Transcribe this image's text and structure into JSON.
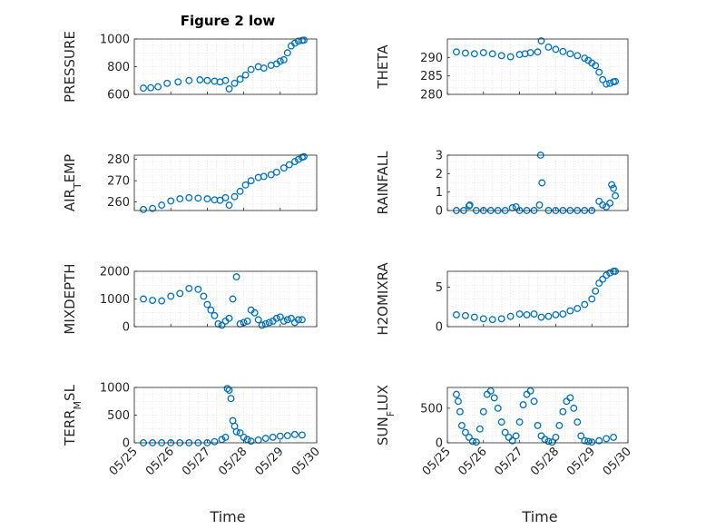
{
  "chart_data": [
    {
      "type": "scatter",
      "title": "Figure 2 low",
      "ylabel": "PRESSURE",
      "ylim": [
        600,
        1000
      ],
      "yticks": [
        600,
        800,
        1000
      ],
      "xlim": [
        0,
        5
      ],
      "x": [
        0.25,
        0.45,
        0.65,
        0.9,
        1.2,
        1.5,
        1.8,
        2.0,
        2.2,
        2.35,
        2.5,
        2.6,
        2.75,
        2.9,
        3.05,
        3.2,
        3.4,
        3.55,
        3.75,
        3.9,
        4.0,
        4.1,
        4.2,
        4.3,
        4.4,
        4.5,
        4.6,
        4.65
      ],
      "values": [
        645,
        648,
        655,
        680,
        690,
        700,
        705,
        700,
        695,
        690,
        700,
        640,
        680,
        710,
        740,
        780,
        800,
        790,
        810,
        820,
        840,
        850,
        900,
        950,
        970,
        985,
        990,
        992
      ]
    },
    {
      "type": "scatter",
      "title": "",
      "ylabel": "THETA",
      "ylim": [
        280,
        295
      ],
      "yticks": [
        280,
        285,
        290
      ],
      "xlim": [
        0,
        5
      ],
      "x": [
        0.25,
        0.5,
        0.75,
        1.0,
        1.25,
        1.5,
        1.75,
        2.0,
        2.15,
        2.3,
        2.5,
        2.6,
        2.8,
        3.0,
        3.2,
        3.4,
        3.6,
        3.8,
        3.9,
        4.0,
        4.1,
        4.2,
        4.3,
        4.4,
        4.5,
        4.6,
        4.65
      ],
      "values": [
        291.5,
        291.2,
        291.0,
        291.3,
        291.0,
        290.5,
        290.2,
        290.8,
        291.0,
        291.3,
        291.5,
        294.5,
        292.8,
        292.2,
        291.6,
        291.0,
        290.5,
        289.8,
        289.2,
        288.5,
        287.8,
        286.0,
        284.0,
        282.8,
        283.0,
        283.4,
        283.5
      ]
    },
    {
      "type": "scatter",
      "title": "",
      "ylabel": "AIR_TEMP",
      "ylim": [
        256,
        282
      ],
      "yticks": [
        260,
        270,
        280
      ],
      "xlim": [
        0,
        5
      ],
      "x": [
        0.25,
        0.5,
        0.75,
        1.0,
        1.25,
        1.5,
        1.75,
        2.0,
        2.2,
        2.35,
        2.5,
        2.6,
        2.75,
        2.9,
        3.05,
        3.2,
        3.4,
        3.55,
        3.75,
        3.9,
        4.1,
        4.25,
        4.4,
        4.5,
        4.6,
        4.65
      ],
      "values": [
        256.5,
        257.0,
        258.5,
        260.5,
        261.5,
        262.0,
        261.8,
        261.5,
        261.0,
        260.8,
        262.0,
        258.5,
        262.5,
        265.0,
        268.0,
        270.0,
        271.5,
        272.0,
        272.8,
        274.0,
        276.0,
        277.5,
        279.0,
        280.0,
        281.0,
        281.3
      ]
    },
    {
      "type": "scatter",
      "title": "",
      "ylabel": "RAINFALL",
      "ylim": [
        0,
        3
      ],
      "yticks": [
        0,
        1,
        2,
        3
      ],
      "xlim": [
        0,
        5
      ],
      "x": [
        0.25,
        0.45,
        0.6,
        0.62,
        0.8,
        1.0,
        1.2,
        1.4,
        1.6,
        1.8,
        1.9,
        2.0,
        2.2,
        2.4,
        2.55,
        2.58,
        2.62,
        2.8,
        3.0,
        3.2,
        3.4,
        3.6,
        3.8,
        4.0,
        4.2,
        4.3,
        4.4,
        4.5,
        4.55,
        4.6,
        4.65
      ],
      "values": [
        0,
        0,
        0.25,
        0.3,
        0,
        0,
        0,
        0,
        0,
        0.15,
        0.2,
        0,
        0,
        0,
        0.3,
        3.0,
        1.5,
        0,
        0,
        0,
        0,
        0,
        0,
        0,
        0.5,
        0.3,
        0.2,
        0.4,
        1.4,
        1.2,
        0.8
      ]
    },
    {
      "type": "scatter",
      "title": "",
      "ylabel": "MIXDEPTH",
      "ylim": [
        0,
        2000
      ],
      "yticks": [
        0,
        1000,
        2000
      ],
      "xlim": [
        0,
        5
      ],
      "x": [
        0.25,
        0.5,
        0.75,
        1.0,
        1.25,
        1.5,
        1.75,
        1.9,
        2.0,
        2.1,
        2.2,
        2.3,
        2.4,
        2.5,
        2.6,
        2.7,
        2.8,
        2.9,
        3.0,
        3.1,
        3.2,
        3.3,
        3.4,
        3.5,
        3.6,
        3.7,
        3.8,
        3.9,
        4.0,
        4.1,
        4.2,
        4.3,
        4.4,
        4.5,
        4.6
      ],
      "values": [
        1000,
        950,
        930,
        1100,
        1200,
        1380,
        1350,
        1100,
        800,
        600,
        400,
        100,
        50,
        200,
        300,
        1000,
        1800,
        100,
        150,
        200,
        600,
        500,
        250,
        50,
        100,
        150,
        200,
        300,
        350,
        200,
        250,
        300,
        150,
        250,
        250
      ]
    },
    {
      "type": "scatter",
      "title": "",
      "ylabel": "H2OMIXRA",
      "ylim": [
        0,
        7
      ],
      "yticks": [
        0,
        5
      ],
      "xlim": [
        0,
        5
      ],
      "x": [
        0.25,
        0.5,
        0.75,
        1.0,
        1.25,
        1.5,
        1.75,
        2.0,
        2.2,
        2.4,
        2.6,
        2.8,
        3.0,
        3.2,
        3.4,
        3.6,
        3.8,
        4.0,
        4.1,
        4.2,
        4.3,
        4.4,
        4.5,
        4.6,
        4.65
      ],
      "values": [
        1.5,
        1.4,
        1.2,
        1.0,
        0.9,
        1.0,
        1.3,
        1.6,
        1.5,
        1.6,
        1.2,
        1.3,
        1.5,
        1.6,
        2.0,
        2.3,
        2.8,
        3.5,
        4.5,
        5.5,
        6.0,
        6.5,
        6.8,
        7.0,
        7.0
      ]
    },
    {
      "type": "scatter",
      "title": "",
      "ylabel": "TERR_MSL",
      "ylim": [
        0,
        1000
      ],
      "yticks": [
        0,
        500,
        1000
      ],
      "xlim": [
        0,
        5
      ],
      "x": [
        0.25,
        0.5,
        0.75,
        1.0,
        1.25,
        1.5,
        1.75,
        2.0,
        2.2,
        2.4,
        2.5,
        2.55,
        2.6,
        2.65,
        2.7,
        2.75,
        2.8,
        2.9,
        3.0,
        3.1,
        3.2,
        3.4,
        3.6,
        3.8,
        4.0,
        4.2,
        4.4,
        4.6
      ],
      "values": [
        0,
        0,
        0,
        0,
        0,
        0,
        0,
        0,
        20,
        60,
        100,
        980,
        950,
        800,
        400,
        300,
        200,
        180,
        100,
        60,
        30,
        50,
        80,
        100,
        120,
        130,
        150,
        140
      ]
    },
    {
      "type": "scatter",
      "title": "",
      "ylabel": "SUN_FLUX",
      "ylim": [
        0,
        800
      ],
      "yticks": [
        0,
        500
      ],
      "xlim": [
        0,
        5
      ],
      "x": [
        0.25,
        0.3,
        0.35,
        0.4,
        0.5,
        0.6,
        0.7,
        0.8,
        0.9,
        1.0,
        1.1,
        1.2,
        1.3,
        1.4,
        1.5,
        1.6,
        1.7,
        1.8,
        1.9,
        2.0,
        2.1,
        2.2,
        2.3,
        2.4,
        2.5,
        2.6,
        2.7,
        2.8,
        2.9,
        3.0,
        3.1,
        3.2,
        3.3,
        3.4,
        3.5,
        3.6,
        3.7,
        3.8,
        3.9,
        4.0,
        4.2,
        4.4,
        4.6
      ],
      "values": [
        700,
        600,
        450,
        250,
        150,
        80,
        20,
        10,
        200,
        450,
        700,
        750,
        650,
        500,
        300,
        150,
        80,
        30,
        100,
        300,
        550,
        700,
        750,
        600,
        250,
        100,
        50,
        20,
        10,
        80,
        250,
        450,
        600,
        650,
        500,
        300,
        100,
        30,
        20,
        10,
        30,
        60,
        80
      ]
    }
  ],
  "xaxis": {
    "label": "Time",
    "ticks": [
      "05/25",
      "05/26",
      "05/27",
      "05/28",
      "05/29",
      "05/30"
    ]
  },
  "style": {
    "marker_color": "#0072BD",
    "axis_color": "#262626",
    "grid_color": "#d9d9d9"
  }
}
